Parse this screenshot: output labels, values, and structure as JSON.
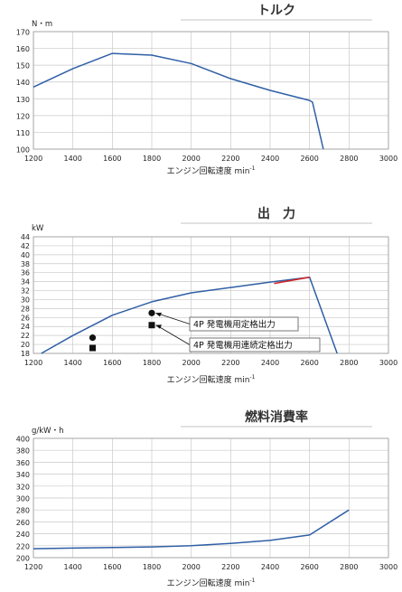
{
  "chart_data": [
    {
      "type": "line",
      "title": "トルク",
      "ylabel": "N・m",
      "xlabel": "エンジン回転速度 min",
      "xlabel_sup": "-1",
      "xlim": [
        1200,
        3000
      ],
      "ylim": [
        100,
        170
      ],
      "xticks": [
        "1200",
        "1400",
        "1600",
        "1800",
        "2000",
        "2200",
        "2400",
        "2600",
        "2800",
        "3000"
      ],
      "yticks": [
        "100",
        "110",
        "120",
        "130",
        "140",
        "150",
        "160",
        "170"
      ],
      "grid": true,
      "series": [
        {
          "color": "#2f5fa6",
          "x": [
            1200,
            1400,
            1600,
            1800,
            2000,
            2200,
            2400,
            2600,
            2615,
            2670
          ],
          "y": [
            137,
            148,
            157,
            156,
            151,
            142,
            135,
            129,
            128,
            100
          ]
        }
      ]
    },
    {
      "type": "line",
      "title": "出　力",
      "ylabel": "kW",
      "xlabel": "エンジン回転速度 min",
      "xlabel_sup": "-1",
      "xlim": [
        1200,
        3000
      ],
      "ylim": [
        18,
        44
      ],
      "xticks": [
        "1200",
        "1400",
        "1600",
        "1800",
        "2000",
        "2200",
        "2400",
        "2600",
        "2800",
        "3000"
      ],
      "yticks": [
        "18",
        "20",
        "22",
        "24",
        "26",
        "28",
        "30",
        "32",
        "34",
        "36",
        "38",
        "40",
        "42",
        "44"
      ],
      "grid": true,
      "series": [
        {
          "color": "#2f5fa6",
          "x": [
            1240,
            1400,
            1600,
            1800,
            2000,
            2200,
            2400,
            2600,
            2740
          ],
          "y": [
            18,
            22,
            26.5,
            29.5,
            31.5,
            32.7,
            33.9,
            35,
            18
          ]
        },
        {
          "color": "#d62020",
          "x": [
            2420,
            2600
          ],
          "y": [
            33.6,
            35
          ]
        }
      ],
      "points": [
        {
          "marker": "circle",
          "x": 1500,
          "y": 21.5
        },
        {
          "marker": "square",
          "x": 1500,
          "y": 19.2
        },
        {
          "marker": "circle",
          "x": 1800,
          "y": 27
        },
        {
          "marker": "square",
          "x": 1800,
          "y": 24.3
        }
      ],
      "annotations": [
        {
          "text": "4P 発電機用定格出力",
          "x": 1800,
          "y": 27
        },
        {
          "text": "4P 発電機用連続定格出力",
          "x": 1800,
          "y": 24.3
        }
      ]
    },
    {
      "type": "line",
      "title": "燃料消費率",
      "ylabel": "g/kW・h",
      "xlabel": "エンジン回転速度 min",
      "xlabel_sup": "-1",
      "xlim": [
        1200,
        3000
      ],
      "ylim": [
        200,
        400
      ],
      "xticks": [
        "1200",
        "1400",
        "1600",
        "1800",
        "2000",
        "2200",
        "2400",
        "2600",
        "2800",
        "3000"
      ],
      "yticks": [
        "200",
        "220",
        "240",
        "260",
        "280",
        "300",
        "320",
        "340",
        "360",
        "380",
        "400"
      ],
      "grid": true,
      "series": [
        {
          "color": "#2f5fa6",
          "x": [
            1200,
            1400,
            1600,
            1800,
            2000,
            2200,
            2400,
            2600,
            2800
          ],
          "y": [
            215,
            216,
            217,
            218,
            220,
            224,
            229,
            238,
            280
          ]
        }
      ]
    }
  ]
}
